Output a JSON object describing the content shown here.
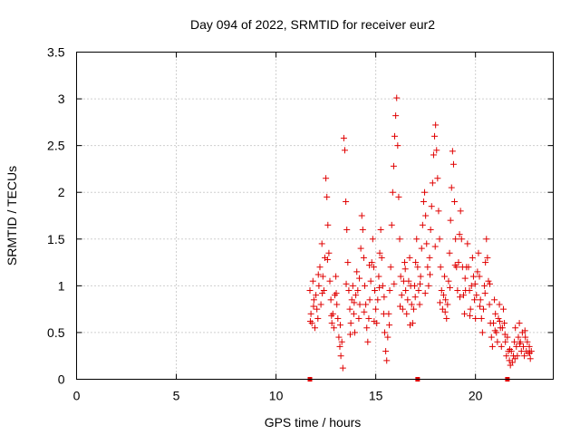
{
  "chart_data": {
    "type": "scatter",
    "title": "Day 094 of 2022, SRMTID for receiver eur2",
    "xlabel": "GPS time / hours",
    "ylabel": "SRMTID / TECUs",
    "xlim": [
      0,
      23.9
    ],
    "ylim": [
      0,
      3.5
    ],
    "x_ticks": [
      0,
      5,
      10,
      15,
      20
    ],
    "y_ticks": [
      0,
      0.5,
      1,
      1.5,
      2,
      2.5,
      3,
      3.5
    ],
    "x_tick_labels": [
      "0",
      "5",
      "10",
      "15",
      "20"
    ],
    "y_tick_labels": [
      "0",
      "0.5",
      "1",
      "1.5",
      "2",
      "2.5",
      "3",
      "3.5"
    ],
    "grid": true,
    "marker": "plus",
    "color": "#e00000",
    "series": [
      {
        "name": "SRMTID",
        "points": [
          [
            11.7,
            0.95
          ],
          [
            11.75,
            0.7
          ],
          [
            11.8,
            0.6
          ],
          [
            11.85,
            1.05
          ],
          [
            11.9,
            0.85
          ],
          [
            11.95,
            0.55
          ],
          [
            12.0,
            0.9
          ],
          [
            12.05,
            0.75
          ],
          [
            12.1,
            0.65
          ],
          [
            12.15,
            1.0
          ],
          [
            12.2,
            1.2
          ],
          [
            12.25,
            0.8
          ],
          [
            12.3,
            1.45
          ],
          [
            12.35,
            1.1
          ],
          [
            12.4,
            0.95
          ],
          [
            12.45,
            1.3
          ],
          [
            12.5,
            2.15
          ],
          [
            12.55,
            1.95
          ],
          [
            12.6,
            1.65
          ],
          [
            12.65,
            1.35
          ],
          [
            12.7,
            1.05
          ],
          [
            12.75,
            0.85
          ],
          [
            12.8,
            0.6
          ],
          [
            12.85,
            0.7
          ],
          [
            12.9,
            0.55
          ],
          [
            12.95,
            0.9
          ],
          [
            13.0,
            1.1
          ],
          [
            13.05,
            0.8
          ],
          [
            13.1,
            0.65
          ],
          [
            13.15,
            0.45
          ],
          [
            13.2,
            0.35
          ],
          [
            13.25,
            0.25
          ],
          [
            13.3,
            0.4
          ],
          [
            13.35,
            0.12
          ],
          [
            13.4,
            2.58
          ],
          [
            13.45,
            2.45
          ],
          [
            13.5,
            1.9
          ],
          [
            13.55,
            1.6
          ],
          [
            13.6,
            1.25
          ],
          [
            13.65,
            0.95
          ],
          [
            13.7,
            0.75
          ],
          [
            13.75,
            0.6
          ],
          [
            13.8,
            0.85
          ],
          [
            13.85,
            1.0
          ],
          [
            13.9,
            0.7
          ],
          [
            13.95,
            0.5
          ],
          [
            14.0,
            0.9
          ],
          [
            14.05,
            1.15
          ],
          [
            14.1,
            0.95
          ],
          [
            14.15,
            0.65
          ],
          [
            14.2,
            0.8
          ],
          [
            14.25,
            1.4
          ],
          [
            14.3,
            1.75
          ],
          [
            14.35,
            1.6
          ],
          [
            14.4,
            1.3
          ],
          [
            14.45,
            1.0
          ],
          [
            14.5,
            0.8
          ],
          [
            14.55,
            0.55
          ],
          [
            14.6,
            0.4
          ],
          [
            14.65,
            0.65
          ],
          [
            14.7,
            0.85
          ],
          [
            14.75,
            1.05
          ],
          [
            14.8,
            1.25
          ],
          [
            14.85,
            1.5
          ],
          [
            14.9,
            1.2
          ],
          [
            14.95,
            0.95
          ],
          [
            15.0,
            0.75
          ],
          [
            15.05,
            0.6
          ],
          [
            15.1,
            0.85
          ],
          [
            15.15,
            1.1
          ],
          [
            15.2,
            1.35
          ],
          [
            15.25,
            1.6
          ],
          [
            15.3,
            1.3
          ],
          [
            15.35,
            1.0
          ],
          [
            15.4,
            0.7
          ],
          [
            15.45,
            0.5
          ],
          [
            15.5,
            0.3
          ],
          [
            15.55,
            0.2
          ],
          [
            15.6,
            0.45
          ],
          [
            15.65,
            0.7
          ],
          [
            15.7,
            0.95
          ],
          [
            15.75,
            1.2
          ],
          [
            15.8,
            1.65
          ],
          [
            15.85,
            2.0
          ],
          [
            15.9,
            2.28
          ],
          [
            15.95,
            2.6
          ],
          [
            16.0,
            2.82
          ],
          [
            16.05,
            3.01
          ],
          [
            16.1,
            2.5
          ],
          [
            16.15,
            1.95
          ],
          [
            16.2,
            1.5
          ],
          [
            16.25,
            1.1
          ],
          [
            16.3,
            0.9
          ],
          [
            16.35,
            0.75
          ],
          [
            16.4,
            1.05
          ],
          [
            16.45,
            1.25
          ],
          [
            16.5,
            0.95
          ],
          [
            16.55,
            0.7
          ],
          [
            16.6,
            0.85
          ],
          [
            16.65,
            1.05
          ],
          [
            16.7,
            1.3
          ],
          [
            16.75,
            1.0
          ],
          [
            16.8,
            0.8
          ],
          [
            16.85,
            0.6
          ],
          [
            16.9,
            0.75
          ],
          [
            16.95,
            1.0
          ],
          [
            17.0,
            1.25
          ],
          [
            17.05,
            1.5
          ],
          [
            17.1,
            1.2
          ],
          [
            17.15,
            0.95
          ],
          [
            17.2,
            0.8
          ],
          [
            17.25,
            1.1
          ],
          [
            17.3,
            1.4
          ],
          [
            17.35,
            1.65
          ],
          [
            17.4,
            1.9
          ],
          [
            17.45,
            2.0
          ],
          [
            17.5,
            1.75
          ],
          [
            17.55,
            1.45
          ],
          [
            17.6,
            1.2
          ],
          [
            17.65,
            1.0
          ],
          [
            17.7,
            1.3
          ],
          [
            17.75,
            1.6
          ],
          [
            17.8,
            1.85
          ],
          [
            17.85,
            2.1
          ],
          [
            17.9,
            2.4
          ],
          [
            17.95,
            2.6
          ],
          [
            18.0,
            2.72
          ],
          [
            18.05,
            2.45
          ],
          [
            18.1,
            2.15
          ],
          [
            18.15,
            1.8
          ],
          [
            18.2,
            1.5
          ],
          [
            18.25,
            1.2
          ],
          [
            18.3,
            0.95
          ],
          [
            18.35,
            0.75
          ],
          [
            18.4,
            0.9
          ],
          [
            18.45,
            1.1
          ],
          [
            18.5,
            0.85
          ],
          [
            18.55,
            0.65
          ],
          [
            18.6,
            0.8
          ],
          [
            18.65,
            1.05
          ],
          [
            18.7,
            1.35
          ],
          [
            18.75,
            1.7
          ],
          [
            18.8,
            2.05
          ],
          [
            18.85,
            2.44
          ],
          [
            18.9,
            2.3
          ],
          [
            18.95,
            1.9
          ],
          [
            19.0,
            1.5
          ],
          [
            19.05,
            1.2
          ],
          [
            19.1,
            0.95
          ],
          [
            19.15,
            1.25
          ],
          [
            19.2,
            1.55
          ],
          [
            19.25,
            1.8
          ],
          [
            19.3,
            1.5
          ],
          [
            19.35,
            1.2
          ],
          [
            19.4,
            0.9
          ],
          [
            19.45,
            0.7
          ],
          [
            19.5,
            0.95
          ],
          [
            19.55,
            1.2
          ],
          [
            19.6,
            1.45
          ],
          [
            19.65,
            1.2
          ],
          [
            19.7,
            0.95
          ],
          [
            19.75,
            0.75
          ],
          [
            19.8,
            1.0
          ],
          [
            19.85,
            1.3
          ],
          [
            19.9,
            1.1
          ],
          [
            19.95,
            0.85
          ],
          [
            20.0,
            0.65
          ],
          [
            20.05,
            0.9
          ],
          [
            20.1,
            1.15
          ],
          [
            20.15,
            1.35
          ],
          [
            20.2,
            1.1
          ],
          [
            20.25,
            0.85
          ],
          [
            20.3,
            0.65
          ],
          [
            20.35,
            0.5
          ],
          [
            20.4,
            0.75
          ],
          [
            20.45,
            1.0
          ],
          [
            20.5,
            1.25
          ],
          [
            20.55,
            1.5
          ],
          [
            20.6,
            1.3
          ],
          [
            20.65,
            1.05
          ],
          [
            20.7,
            0.8
          ],
          [
            20.75,
            0.6
          ],
          [
            20.8,
            0.45
          ],
          [
            20.85,
            0.35
          ],
          [
            20.9,
            0.6
          ],
          [
            20.95,
            0.85
          ],
          [
            21.0,
            0.7
          ],
          [
            21.05,
            0.5
          ],
          [
            21.1,
            0.4
          ],
          [
            21.15,
            0.65
          ],
          [
            21.2,
            0.8
          ],
          [
            21.25,
            0.55
          ],
          [
            21.3,
            0.35
          ],
          [
            21.35,
            0.55
          ],
          [
            21.4,
            0.75
          ],
          [
            21.45,
            0.6
          ],
          [
            21.5,
            0.4
          ],
          [
            21.55,
            0.25
          ],
          [
            21.6,
            0.45
          ],
          [
            21.65,
            0.3
          ],
          [
            21.7,
            0.2
          ],
          [
            21.75,
            0.15
          ],
          [
            21.8,
            0.3
          ],
          [
            21.85,
            0.18
          ],
          [
            21.9,
            0.25
          ],
          [
            21.95,
            0.4
          ],
          [
            22.0,
            0.55
          ],
          [
            22.05,
            0.35
          ],
          [
            22.1,
            0.25
          ],
          [
            22.15,
            0.45
          ],
          [
            22.2,
            0.6
          ],
          [
            22.25,
            0.4
          ],
          [
            22.3,
            0.3
          ],
          [
            22.35,
            0.5
          ],
          [
            22.4,
            0.35
          ],
          [
            22.45,
            0.25
          ],
          [
            22.5,
            0.45
          ],
          [
            22.55,
            0.3
          ],
          [
            22.6,
            0.4
          ],
          [
            22.65,
            0.28
          ],
          [
            22.7,
            0.35
          ],
          [
            22.75,
            0.22
          ],
          [
            22.8,
            0.3
          ],
          [
            11.72,
            0.62
          ],
          [
            11.88,
            0.78
          ],
          [
            12.12,
            1.12
          ],
          [
            12.32,
            0.92
          ],
          [
            12.58,
            1.28
          ],
          [
            12.78,
            0.68
          ],
          [
            13.02,
            0.92
          ],
          [
            13.22,
            0.58
          ],
          [
            13.52,
            1.02
          ],
          [
            13.72,
            0.48
          ],
          [
            13.92,
            0.82
          ],
          [
            14.18,
            1.08
          ],
          [
            14.42,
            0.72
          ],
          [
            14.68,
            1.22
          ],
          [
            14.92,
            0.62
          ],
          [
            15.18,
            0.98
          ],
          [
            15.42,
            0.88
          ],
          [
            15.68,
            0.58
          ],
          [
            15.92,
            1.02
          ],
          [
            16.22,
            0.78
          ],
          [
            16.48,
            1.18
          ],
          [
            16.72,
            0.58
          ],
          [
            16.98,
            0.88
          ],
          [
            17.22,
            1.02
          ],
          [
            17.48,
            0.92
          ],
          [
            17.72,
            1.12
          ],
          [
            17.98,
            1.42
          ],
          [
            18.22,
            0.82
          ],
          [
            18.48,
            0.72
          ],
          [
            18.72,
            0.98
          ],
          [
            18.98,
            1.22
          ],
          [
            19.22,
            0.88
          ],
          [
            19.48,
            1.08
          ],
          [
            19.72,
            0.68
          ],
          [
            19.98,
            1.02
          ],
          [
            20.22,
            0.78
          ],
          [
            20.48,
            0.92
          ],
          [
            20.72,
            1.02
          ],
          [
            20.98,
            0.52
          ],
          [
            21.22,
            0.62
          ],
          [
            21.48,
            0.48
          ],
          [
            21.72,
            0.32
          ],
          [
            21.98,
            0.22
          ],
          [
            22.22,
            0.38
          ],
          [
            22.48,
            0.52
          ],
          [
            22.72,
            0.28
          ]
        ]
      }
    ],
    "base_markers_x": [
      11.7,
      17.1,
      21.6
    ]
  }
}
